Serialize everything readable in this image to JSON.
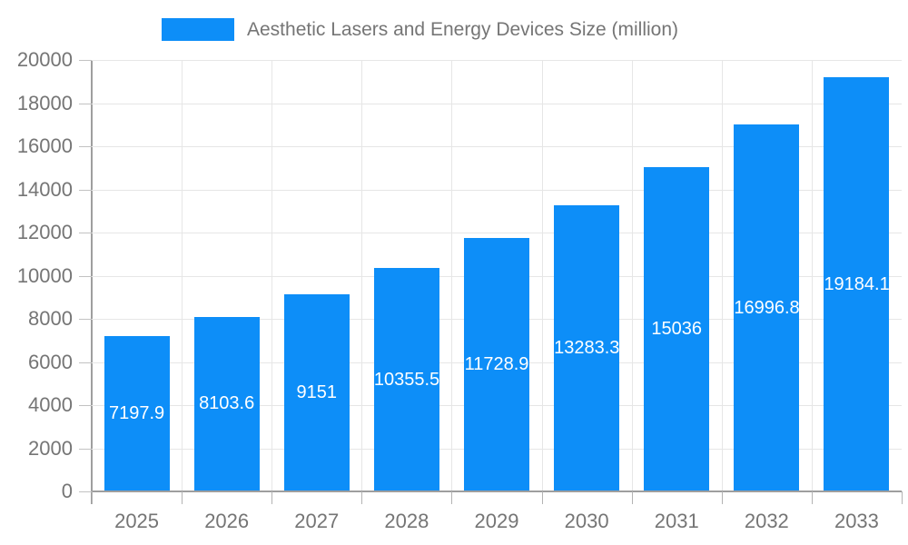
{
  "legend": {
    "label": "Aesthetic Lasers and Energy Devices Size (million)"
  },
  "chart_data": {
    "type": "bar",
    "title": "Aesthetic Lasers and Energy Devices Size (million)",
    "categories": [
      "2025",
      "2026",
      "2027",
      "2028",
      "2029",
      "2030",
      "2031",
      "2032",
      "2033"
    ],
    "series": [
      {
        "name": "Aesthetic Lasers and Energy Devices Size (million)",
        "values": [
          7197.9,
          8103.6,
          9151,
          10355.5,
          11728.9,
          13283.3,
          15036,
          16996.8,
          19184.1
        ]
      }
    ],
    "xlabel": "",
    "ylabel": "",
    "ylim": [
      0,
      20000
    ],
    "ytick_step": 2000,
    "grid": true,
    "legend_position": "top-center",
    "colors": {
      "bar": "#0d8ef8",
      "bar_value_label": "#ffffff",
      "axis_text": "#757575",
      "gridline": "#e6e6e6",
      "axis_line": "#9e9e9e"
    }
  }
}
